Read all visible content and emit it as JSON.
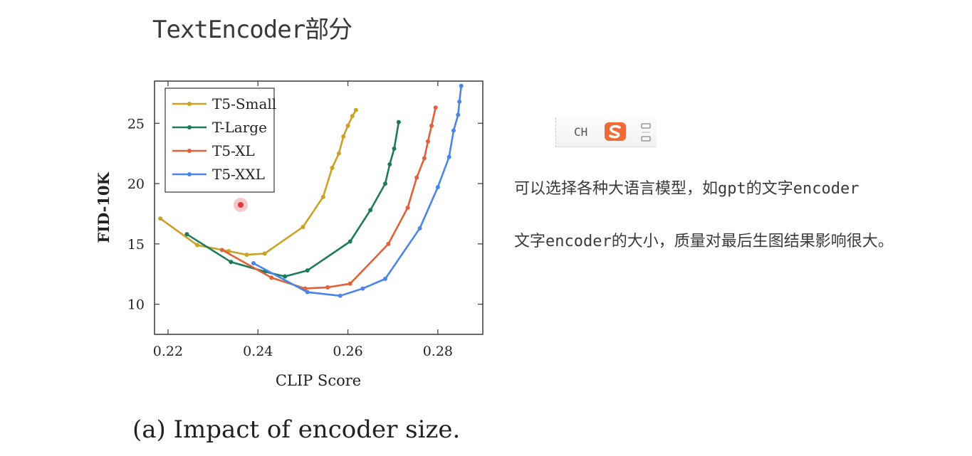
{
  "slide": {
    "title": "TextEncoder部分",
    "caption": "(a) Impact of encoder size.",
    "notes": [
      "可以选择各种大语言模型，如gpt的文字encoder",
      "文字encoder的大小，质量对最后生图结果影响很大。"
    ]
  },
  "ime_toolbar": {
    "lang": "CH",
    "logo_icon": "sogou-s-icon",
    "menu_icon": "ime-menu-icon",
    "logo_color": "#f06a35"
  },
  "chart_data": {
    "type": "line",
    "xlabel": "CLIP Score",
    "ylabel": "FID-10K",
    "xlim": [
      0.217,
      0.29
    ],
    "ylim": [
      7.5,
      28.5
    ],
    "xticks": [
      0.22,
      0.24,
      0.26,
      0.28
    ],
    "xtick_labels": [
      "0.22",
      "0.24",
      "0.26",
      "0.28"
    ],
    "yticks": [
      10,
      15,
      20,
      25
    ],
    "ytick_labels": [
      "10",
      "15",
      "20",
      "25"
    ],
    "legend_position": "top-left",
    "grid": false,
    "series": [
      {
        "name": "T5-Small",
        "color": "#c9a227",
        "x": [
          0.2183,
          0.2265,
          0.2335,
          0.2375,
          0.2415,
          0.25,
          0.2545,
          0.2565,
          0.258,
          0.259,
          0.26,
          0.261,
          0.2618
        ],
        "y": [
          17.1,
          14.9,
          14.4,
          14.1,
          14.2,
          16.4,
          18.9,
          21.3,
          22.5,
          23.9,
          24.8,
          25.6,
          26.1
        ]
      },
      {
        "name": "T-Large",
        "color": "#1f7a5c",
        "x": [
          0.2242,
          0.234,
          0.2415,
          0.246,
          0.251,
          0.2605,
          0.265,
          0.2683,
          0.2693,
          0.2703,
          0.2713
        ],
        "y": [
          15.8,
          13.5,
          12.7,
          12.3,
          12.8,
          15.2,
          17.8,
          20.0,
          21.6,
          22.9,
          25.1
        ]
      },
      {
        "name": "T5-XL",
        "color": "#e0613a",
        "x": [
          0.232,
          0.243,
          0.2505,
          0.2555,
          0.2605,
          0.269,
          0.2733,
          0.2753,
          0.277,
          0.2778,
          0.2786,
          0.2795
        ],
        "y": [
          14.5,
          12.2,
          11.3,
          11.4,
          11.7,
          15.0,
          18.0,
          20.5,
          22.1,
          23.5,
          24.8,
          26.3
        ]
      },
      {
        "name": "T5-XXL",
        "color": "#4a86e8",
        "x": [
          0.239,
          0.251,
          0.2583,
          0.2633,
          0.2683,
          0.276,
          0.28,
          0.2825,
          0.2835,
          0.2845,
          0.2848,
          0.2852
        ],
        "y": [
          13.4,
          11.0,
          10.7,
          11.3,
          12.1,
          16.3,
          19.7,
          22.2,
          24.4,
          25.7,
          26.8,
          28.1
        ]
      }
    ]
  }
}
